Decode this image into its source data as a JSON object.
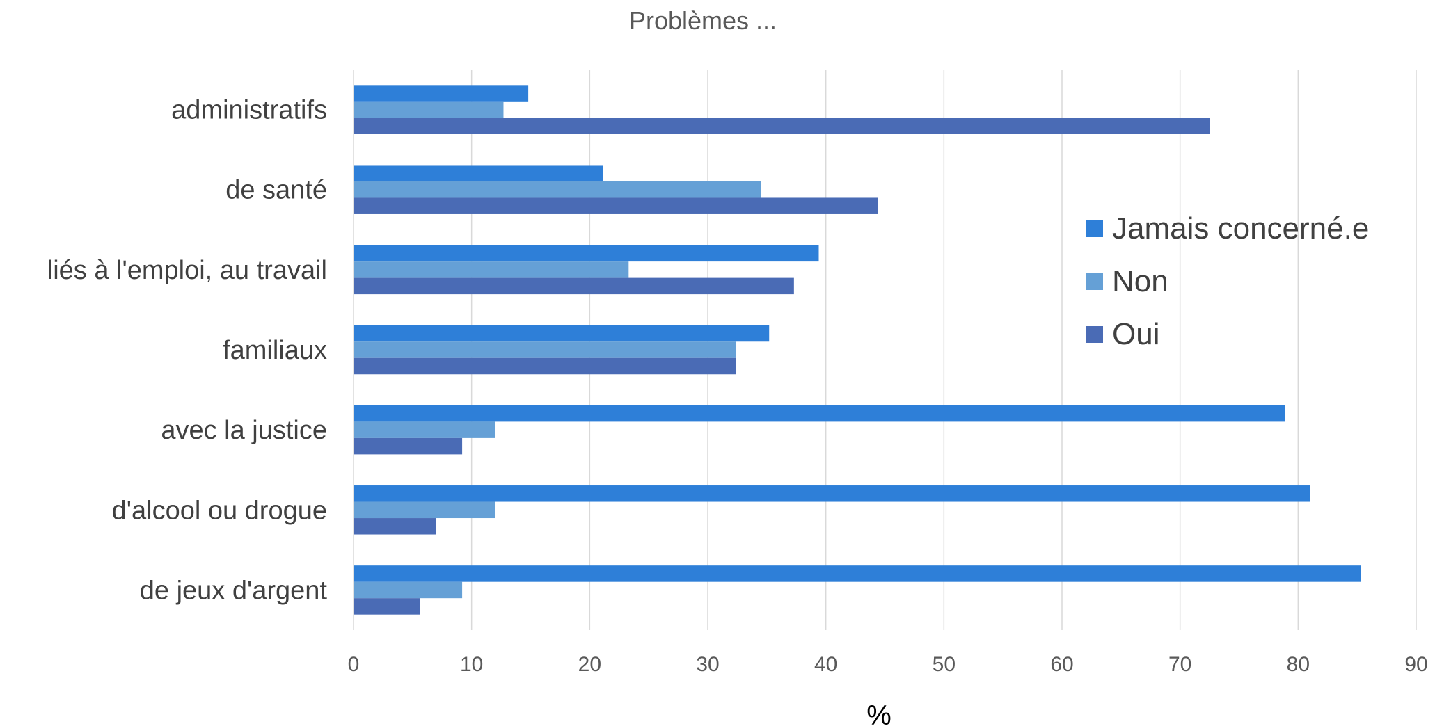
{
  "chart_data": {
    "type": "bar",
    "orientation": "horizontal",
    "title": "Problèmes ...",
    "xlabel": "%",
    "ylabel": "",
    "xlim": [
      0,
      90
    ],
    "ticks": [
      "0",
      "10",
      "20",
      "30",
      "40",
      "50",
      "60",
      "70",
      "80",
      "90"
    ],
    "grid": true,
    "legend_position": "right",
    "categories": [
      "administratifs",
      "de santé",
      "liés à l'emploi, au travail",
      "familiaux",
      "avec la justice",
      "d'alcool ou drogue",
      "de jeux d'argent"
    ],
    "series": [
      {
        "name": "Jamais concerné.e",
        "color": "#2e7fd8",
        "values": [
          14.8,
          21.1,
          39.4,
          35.2,
          78.9,
          81.0,
          85.3
        ]
      },
      {
        "name": "Non",
        "color": "#65a0d6",
        "values": [
          12.7,
          34.5,
          23.3,
          32.4,
          12.0,
          12.0,
          9.2
        ]
      },
      {
        "name": "Oui",
        "color": "#4a6bb5",
        "values": [
          72.5,
          44.4,
          37.3,
          32.4,
          9.2,
          7.0,
          5.6
        ]
      }
    ]
  }
}
